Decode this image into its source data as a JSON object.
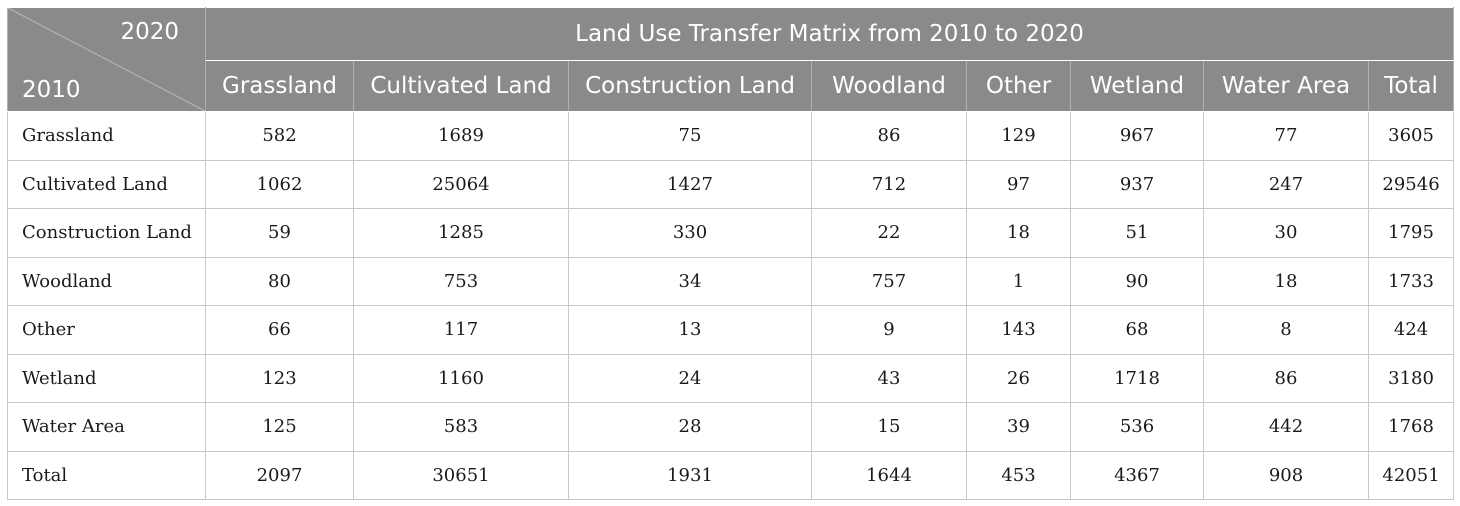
{
  "corner": {
    "col_year": "2020",
    "row_year": "2010"
  },
  "title": "Land Use Transfer Matrix from 2010 to 2020",
  "columns": [
    "Grassland",
    "Cultivated Land",
    "Construction Land",
    "Woodland",
    "Other",
    "Wetland",
    "Water Area",
    "Total"
  ],
  "rows": [
    {
      "label": "Grassland",
      "values": [
        "582",
        "1689",
        "75",
        "86",
        "129",
        "967",
        "77",
        "3605"
      ]
    },
    {
      "label": "Cultivated Land",
      "values": [
        "1062",
        "25064",
        "1427",
        "712",
        "97",
        "937",
        "247",
        "29546"
      ]
    },
    {
      "label": "Construction Land",
      "values": [
        "59",
        "1285",
        "330",
        "22",
        "18",
        "51",
        "30",
        "1795"
      ]
    },
    {
      "label": "Woodland",
      "values": [
        "80",
        "753",
        "34",
        "757",
        "1",
        "90",
        "18",
        "1733"
      ]
    },
    {
      "label": "Other",
      "values": [
        "66",
        "117",
        "13",
        "9",
        "143",
        "68",
        "8",
        "424"
      ]
    },
    {
      "label": "Wetland",
      "values": [
        "123",
        "1160",
        "24",
        "43",
        "26",
        "1718",
        "86",
        "3180"
      ]
    },
    {
      "label": "Water Area",
      "values": [
        "125",
        "583",
        "28",
        "15",
        "39",
        "536",
        "442",
        "1768"
      ]
    },
    {
      "label": "Total",
      "values": [
        "2097",
        "30651",
        "1931",
        "1644",
        "453",
        "4367",
        "908",
        "42051"
      ]
    }
  ]
}
